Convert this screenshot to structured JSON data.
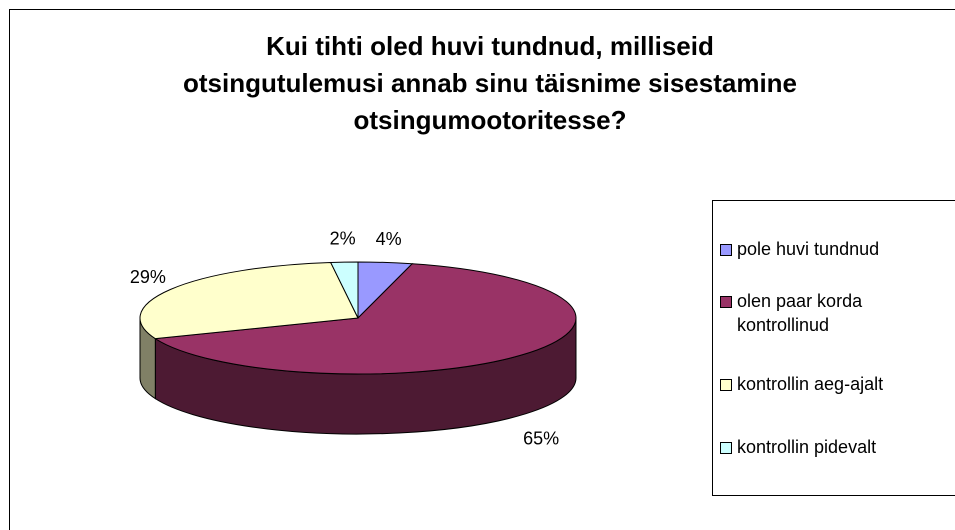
{
  "chart_data": {
    "type": "pie3d",
    "title": "Kui tihti oled huvi tundnud, milliseid\notsingutulemusi annab sinu täisnime sisestamine\notsingumootoritesse?",
    "categories": [
      "pole huvi tundnud",
      "olen paar korda kontrollinud",
      "kontrollin aeg-ajalt",
      "kontrollin pidevalt"
    ],
    "values": [
      4,
      65,
      29,
      2
    ],
    "value_labels": [
      "4%",
      "65%",
      "29%",
      "2%"
    ],
    "colors": [
      "#9999ff",
      "#993366",
      "#ffffcc",
      "#ccffff"
    ],
    "legend": "right"
  }
}
